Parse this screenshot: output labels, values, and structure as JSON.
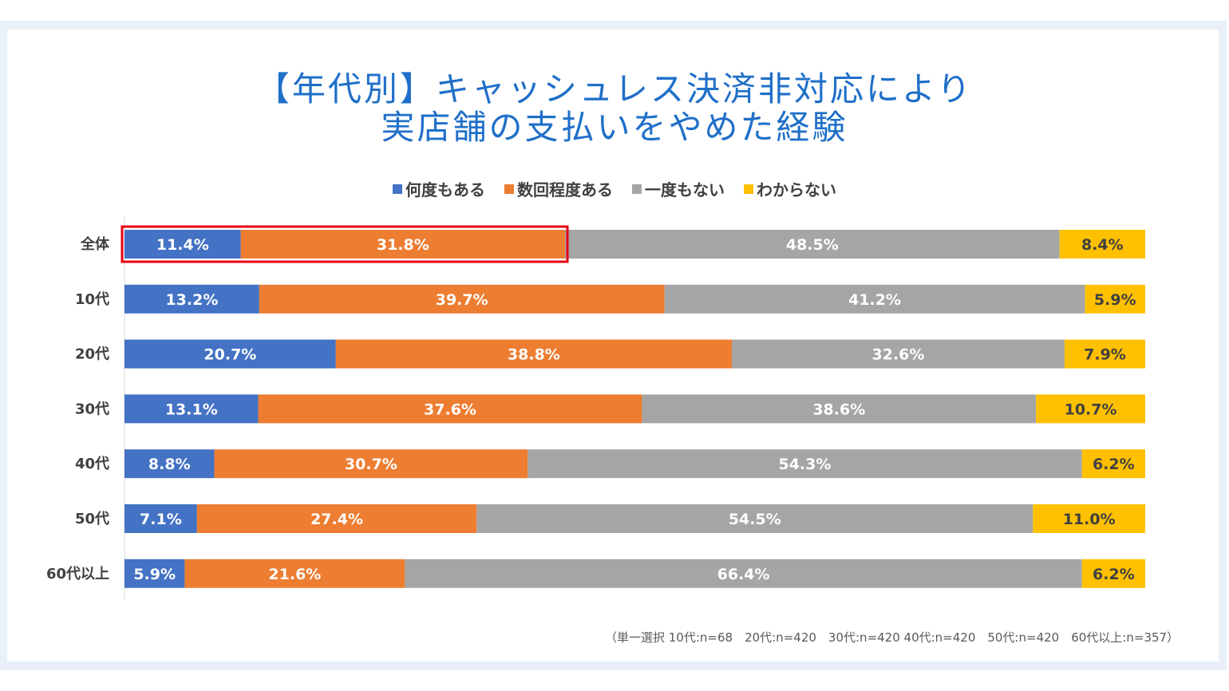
{
  "title": {
    "line1": "【年代別】キャッシュレス決済非対応により",
    "line2": "実店舗の支払いをやめた経験"
  },
  "footnote": "（単一選択 10代:n=68　20代:n=420　30代:n=420  40代:n=420　50代:n=420　60代以上:n=357）",
  "highlight_color": "#e60012",
  "chart_data": {
    "type": "bar",
    "orientation": "horizontal",
    "stacked": true,
    "percent_stacked": true,
    "legend_position": "top",
    "grid": false,
    "xlim": [
      0,
      100
    ],
    "categories": [
      "全体",
      "10代",
      "20代",
      "30代",
      "40代",
      "50代",
      "60代以上"
    ],
    "series": [
      {
        "name": "何度もある",
        "color": "#4472c4",
        "labels": [
          "11.4%",
          "13.2%",
          "20.7%",
          "13.1%",
          "8.8%",
          "7.1%",
          "5.9%"
        ],
        "values": [
          11.4,
          13.2,
          20.7,
          13.1,
          8.8,
          7.1,
          5.9
        ]
      },
      {
        "name": "数回程度ある",
        "color": "#ed7d31",
        "labels": [
          "31.8%",
          "39.7%",
          "38.8%",
          "37.6%",
          "30.7%",
          "27.4%",
          "21.6%"
        ],
        "values": [
          31.8,
          39.7,
          38.8,
          37.6,
          30.7,
          27.4,
          21.6
        ]
      },
      {
        "name": "一度もない",
        "color": "#a5a5a5",
        "labels": [
          "48.5%",
          "41.2%",
          "32.6%",
          "38.6%",
          "54.3%",
          "54.5%",
          "66.4%"
        ],
        "values": [
          48.5,
          41.2,
          32.6,
          38.6,
          54.3,
          54.5,
          66.4
        ]
      },
      {
        "name": "わからない",
        "color": "#ffc000",
        "labels": [
          "8.4%",
          "5.9%",
          "7.9%",
          "10.7%",
          "6.2%",
          "11.0%",
          "6.2%"
        ],
        "values": [
          8.4,
          5.9,
          7.9,
          10.7,
          6.2,
          11.0,
          6.2
        ]
      }
    ],
    "annotation": "全体の「何度もある」「数回程度ある」を赤枠で強調"
  }
}
